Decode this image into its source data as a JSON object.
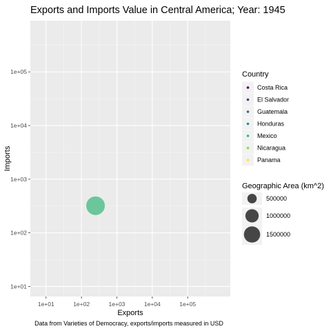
{
  "chart_data": {
    "type": "scatter",
    "title": "Exports and Imports Value in Central America; Year: 1945",
    "xlabel": "Exports",
    "ylabel": "Imports",
    "caption": "Data from Varieties of Democracy, exports/imports measured in USD",
    "x_scale": "log10",
    "y_scale": "log10",
    "xlim": [
      3.6,
      1600000
    ],
    "ylim": [
      6.5,
      900000
    ],
    "x_ticks": [
      10,
      100,
      1000,
      10000,
      100000
    ],
    "x_tick_labels": [
      "1e+01",
      "1e+02",
      "1e+03",
      "1e+04",
      "1e+05"
    ],
    "y_ticks": [
      10,
      100,
      1000,
      10000,
      100000
    ],
    "y_tick_labels": [
      "1e+01",
      "1e+02",
      "1e+03",
      "1e+04",
      "1e+05"
    ],
    "grid": true,
    "legend_position": "right",
    "color_legend": {
      "title": "Country",
      "entries": [
        {
          "label": "Costa Rica",
          "color": "#440154"
        },
        {
          "label": "El Salvador",
          "color": "#443A83"
        },
        {
          "label": "Guatemala",
          "color": "#31688E"
        },
        {
          "label": "Honduras",
          "color": "#21908C"
        },
        {
          "label": "Mexico",
          "color": "#35B779"
        },
        {
          "label": "Nicaragua",
          "color": "#8FD744"
        },
        {
          "label": "Panama",
          "color": "#FDE725"
        }
      ]
    },
    "size_legend": {
      "title": "Geographic Area (km^2)",
      "entries": [
        {
          "label": "500000",
          "value": 500000
        },
        {
          "label": "1000000",
          "value": 1000000
        },
        {
          "label": "1500000",
          "value": 1500000
        }
      ]
    },
    "points": [
      {
        "country": "Mexico",
        "exports": 250,
        "imports": 320,
        "area_km2": 1960000,
        "color": "#35B779"
      }
    ]
  }
}
